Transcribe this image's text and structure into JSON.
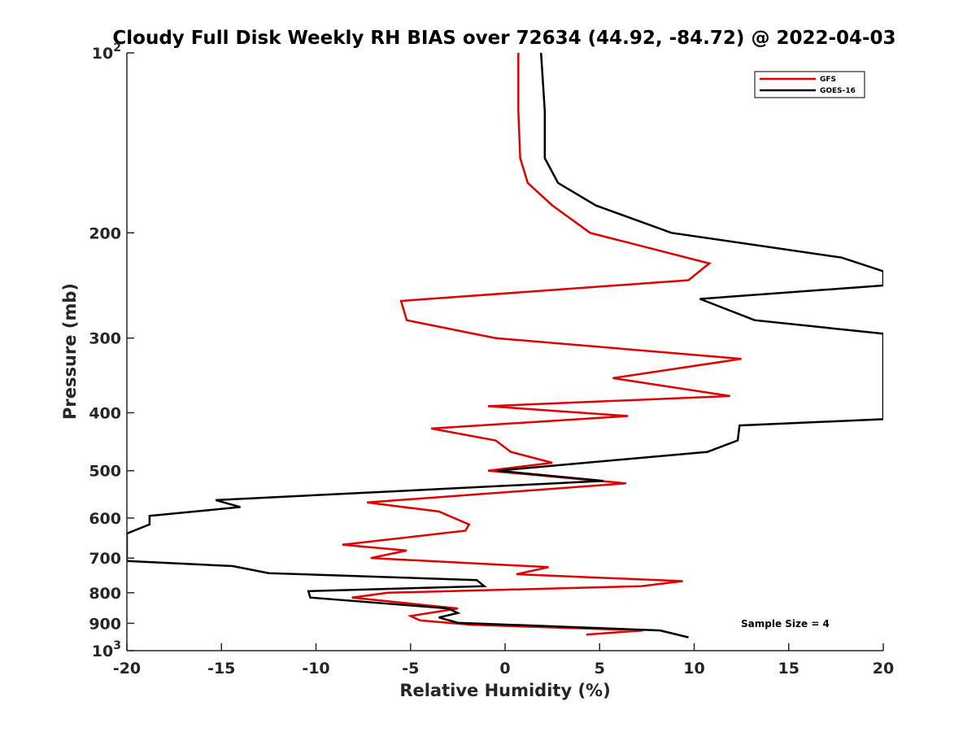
{
  "chart_data": {
    "type": "line",
    "title": "Cloudy Full Disk Weekly RH BIAS over 72634 (44.92, -84.72) @ 2022-04-03",
    "xlabel": "Relative Humidity (%)",
    "ylabel": "Pressure (mb)",
    "xlim": [
      -20,
      20
    ],
    "ylim": [
      100,
      1000
    ],
    "y_scale": "log",
    "y_reversed": true,
    "x_ticks": [
      -20,
      -15,
      -10,
      -5,
      0,
      5,
      10,
      15,
      20
    ],
    "x_tick_labels": [
      "-20",
      "-15",
      "-10",
      "-5",
      "0",
      "5",
      "10",
      "15",
      "20"
    ],
    "y_ticks": [
      100,
      200,
      300,
      400,
      500,
      600,
      700,
      800,
      900,
      1000
    ],
    "y_tick_labels": [
      {
        "base": "10",
        "exp": "2"
      },
      {
        "base": "200",
        "exp": ""
      },
      {
        "base": "300",
        "exp": ""
      },
      {
        "base": "400",
        "exp": ""
      },
      {
        "base": "500",
        "exp": ""
      },
      {
        "base": "600",
        "exp": ""
      },
      {
        "base": "700",
        "exp": ""
      },
      {
        "base": "800",
        "exp": ""
      },
      {
        "base": "900",
        "exp": ""
      },
      {
        "base": "10",
        "exp": "3"
      }
    ],
    "grid": false,
    "legend_position": "top-right",
    "annotation": "Sample Size = 4",
    "series": [
      {
        "name": "GFS",
        "color": "#e00000",
        "points": [
          {
            "x": 0.7,
            "y": 100
          },
          {
            "x": 0.7,
            "y": 125
          },
          {
            "x": 0.8,
            "y": 150
          },
          {
            "x": 1.2,
            "y": 165
          },
          {
            "x": 2.5,
            "y": 180
          },
          {
            "x": 4.5,
            "y": 200
          },
          {
            "x": 10.8,
            "y": 225
          },
          {
            "x": 9.7,
            "y": 240
          },
          {
            "x": -5.5,
            "y": 260
          },
          {
            "x": -5.2,
            "y": 280
          },
          {
            "x": -0.5,
            "y": 300
          },
          {
            "x": 12.5,
            "y": 325
          },
          {
            "x": 5.7,
            "y": 350
          },
          {
            "x": 11.9,
            "y": 375
          },
          {
            "x": -0.9,
            "y": 390
          },
          {
            "x": 6.5,
            "y": 405
          },
          {
            "x": -3.9,
            "y": 425
          },
          {
            "x": -0.5,
            "y": 445
          },
          {
            "x": 0.3,
            "y": 465
          },
          {
            "x": 2.5,
            "y": 485
          },
          {
            "x": -0.9,
            "y": 500
          },
          {
            "x": 6.4,
            "y": 525
          },
          {
            "x": -7.3,
            "y": 565
          },
          {
            "x": -3.5,
            "y": 585
          },
          {
            "x": -1.9,
            "y": 615
          },
          {
            "x": -2.1,
            "y": 630
          },
          {
            "x": -8.6,
            "y": 665
          },
          {
            "x": -5.2,
            "y": 680
          },
          {
            "x": -7.1,
            "y": 700
          },
          {
            "x": 2.3,
            "y": 725
          },
          {
            "x": 0.6,
            "y": 745
          },
          {
            "x": 9.4,
            "y": 765
          },
          {
            "x": 7.2,
            "y": 780
          },
          {
            "x": -6.2,
            "y": 800
          },
          {
            "x": -8.1,
            "y": 815
          },
          {
            "x": -2.5,
            "y": 850
          },
          {
            "x": -5.0,
            "y": 875
          },
          {
            "x": -4.5,
            "y": 890
          },
          {
            "x": -1.8,
            "y": 905
          },
          {
            "x": 7.3,
            "y": 925
          },
          {
            "x": 4.3,
            "y": 940
          }
        ]
      },
      {
        "name": "GOES-16",
        "color": "#000000",
        "points": [
          {
            "x": 1.9,
            "y": 100
          },
          {
            "x": 2.1,
            "y": 125
          },
          {
            "x": 2.1,
            "y": 150
          },
          {
            "x": 2.8,
            "y": 165
          },
          {
            "x": 4.8,
            "y": 180
          },
          {
            "x": 8.8,
            "y": 200
          },
          {
            "x": 17.8,
            "y": 220
          },
          {
            "x": 20.0,
            "y": 232
          },
          {
            "x": 20.0,
            "y": 245
          },
          {
            "x": 10.3,
            "y": 258
          },
          {
            "x": 13.2,
            "y": 280
          },
          {
            "x": 20.0,
            "y": 295
          },
          {
            "x": 20.0,
            "y": 410
          },
          {
            "x": 12.4,
            "y": 420
          },
          {
            "x": 12.3,
            "y": 445
          },
          {
            "x": 10.7,
            "y": 465
          },
          {
            "x": -0.4,
            "y": 500
          },
          {
            "x": 5.2,
            "y": 520
          },
          {
            "x": -15.3,
            "y": 560
          },
          {
            "x": -14.0,
            "y": 575
          },
          {
            "x": -18.8,
            "y": 595
          },
          {
            "x": -18.8,
            "y": 615
          },
          {
            "x": -20.0,
            "y": 637
          },
          {
            "x": -20.0,
            "y": 708
          },
          {
            "x": -14.4,
            "y": 722
          },
          {
            "x": -12.5,
            "y": 742
          },
          {
            "x": -1.5,
            "y": 762
          },
          {
            "x": -1.1,
            "y": 780
          },
          {
            "x": -10.4,
            "y": 795
          },
          {
            "x": -10.3,
            "y": 815
          },
          {
            "x": -3.0,
            "y": 850
          },
          {
            "x": -2.5,
            "y": 865
          },
          {
            "x": -3.5,
            "y": 880
          },
          {
            "x": -2.5,
            "y": 898
          },
          {
            "x": 8.2,
            "y": 925
          },
          {
            "x": 9.7,
            "y": 950
          }
        ]
      }
    ]
  }
}
